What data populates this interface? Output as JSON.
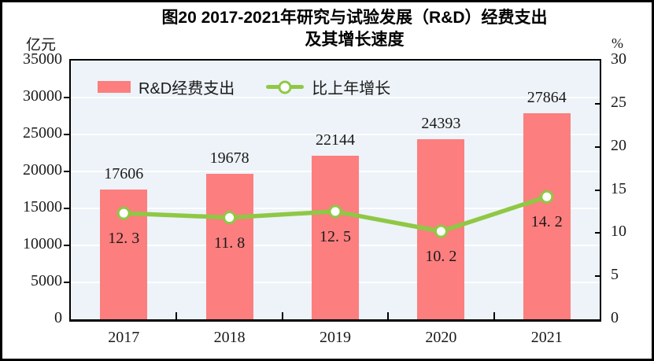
{
  "title": {
    "line1": "图20  2017-2021年研究与试验发展（R&D）经费支出",
    "line2": "及其增长速度"
  },
  "axes": {
    "left_unit": "亿元",
    "right_unit": "%",
    "left_ticks": [
      "35000",
      "30000",
      "25000",
      "20000",
      "15000",
      "10000",
      "5000",
      "0"
    ],
    "right_ticks": [
      "30",
      "25",
      "20",
      "15",
      "10",
      "5",
      "0"
    ],
    "left_min": 0,
    "left_max": 35000,
    "right_min": 0,
    "right_max": 30
  },
  "legend": {
    "items": [
      {
        "label": "R&D经费支出",
        "type": "bar"
      },
      {
        "label": "比上年增长",
        "type": "line"
      }
    ]
  },
  "colors": {
    "bar": "#FC7E7E",
    "line": "#8FC845",
    "plot_bg": "#EDF3F8",
    "gridline": "#FFFFFF",
    "text": "#1a1a1a",
    "frame": "#000000"
  },
  "chart_data": {
    "type": "bar+line combo",
    "title": "图20 2017-2021年研究与试验发展（R&D）经费支出及其增长速度",
    "categories": [
      "2017",
      "2018",
      "2019",
      "2020",
      "2021"
    ],
    "series": [
      {
        "name": "R&D经费支出",
        "type": "bar",
        "axis": "left",
        "unit": "亿元",
        "values": [
          17606,
          19678,
          22144,
          24393,
          27864
        ],
        "labels": [
          "17606",
          "19678",
          "22144",
          "24393",
          "27864"
        ]
      },
      {
        "name": "比上年增长",
        "type": "line",
        "axis": "right",
        "unit": "%",
        "values": [
          12.3,
          11.8,
          12.5,
          10.2,
          14.2
        ],
        "labels": [
          "12. 3",
          "11. 8",
          "12. 5",
          "10. 2",
          "14. 2"
        ],
        "marker": "open-circle"
      }
    ],
    "ylabel_left": "亿元",
    "ylabel_right": "%",
    "ylim_left": [
      0,
      35000
    ],
    "ylim_right": [
      0,
      30
    ],
    "ytick_step_left": 5000,
    "ytick_step_right": 5,
    "grid": "horizontal white gridlines at left-axis steps",
    "legend_position": "top-left inside plot"
  }
}
